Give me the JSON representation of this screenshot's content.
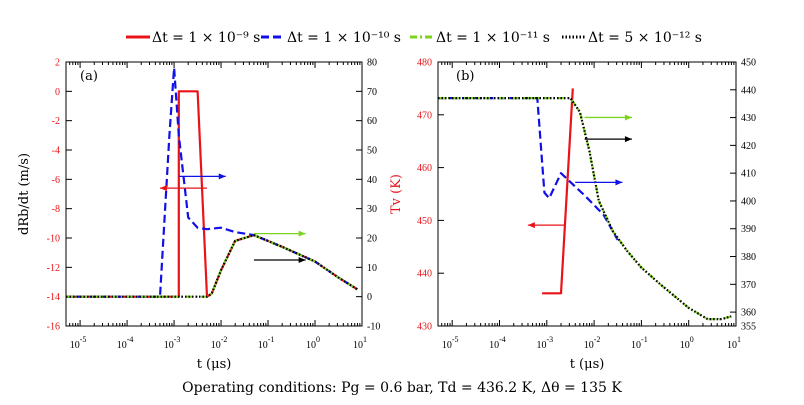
{
  "legend": [
    {
      "label": "Δt = 1 × 10⁻⁹ s",
      "color": "#e8141a",
      "dash": "solid"
    },
    {
      "label": "Δt = 1 × 10⁻¹⁰ s",
      "color": "#1010e8",
      "dash": "dash"
    },
    {
      "label": "Δt = 1 × 10⁻¹¹ s",
      "color": "#7ed321",
      "dash": "dashdot"
    },
    {
      "label": "Δt = 5 × 10⁻¹² s",
      "color": "#000000",
      "dash": "dot"
    }
  ],
  "caption": "Operating conditions: Pg = 0.6 bar, Td = 436.2 K, Δθ = 135 K",
  "chart_data": [
    {
      "type": "line",
      "panel_label": "(a)",
      "xlabel": "t (μs)",
      "xscale": "log",
      "xlim_exp": [
        -5.3,
        1
      ],
      "x_tick_labels": [
        "10 -5",
        "10 -4",
        "10 -3",
        "10 -2",
        "10 -1",
        "10 0",
        "10 1"
      ],
      "ylabel": "dR_b/dt (m/s)",
      "ylim": [
        -16,
        2
      ],
      "y_ticks": [
        -16,
        -14,
        -12,
        -10,
        -8,
        -6,
        -4,
        -2,
        0,
        2
      ],
      "y_tick_labels": [
        "-16",
        "-14",
        "-12",
        "-10",
        "-8",
        "-6",
        "-4",
        "-2",
        "0",
        "2"
      ],
      "y2label": "",
      "y2lim": [
        -10,
        80
      ],
      "y2_ticks": [
        -10,
        0,
        10,
        20,
        30,
        40,
        50,
        60,
        70,
        80
      ],
      "y2_tick_labels": [
        "-10",
        "0",
        "10",
        "20",
        "30",
        "40",
        "50",
        "60",
        "70",
        "80"
      ],
      "series": [
        {
          "name": "Δt = 1 × 10⁻⁹ s",
          "color": "#e8141a",
          "dash": "solid",
          "axis": "left",
          "log10_x": [
            -5.3,
            -2.9,
            -2.9,
            -2.5,
            -2.3,
            -2.3,
            -2.2,
            -2.0,
            -1.7,
            -1.3,
            -0.7,
            0,
            0.5,
            0.9
          ],
          "y": [
            -14,
            -14,
            0,
            0,
            -14,
            -14,
            -13.8,
            -12.2,
            -10.2,
            -9.8,
            -10.6,
            -11.6,
            -12.7,
            -13.5
          ]
        },
        {
          "name": "Δt = 1 × 10⁻¹⁰ s",
          "color": "#1010e8",
          "dash": "dash",
          "axis": "left",
          "log10_x": [
            -5.3,
            -3.3,
            -3.1,
            -3.0,
            -2.9,
            -2.7,
            -2.5,
            -2.3,
            -2.0,
            -1.7,
            -1.3,
            -0.7,
            0,
            0.5,
            0.9
          ],
          "y": [
            -14,
            -14,
            -3,
            1.6,
            -3,
            -8.6,
            -9.3,
            -9.4,
            -9.3,
            -9.6,
            -9.8,
            -10.6,
            -11.6,
            -12.7,
            -13.5
          ]
        },
        {
          "name": "Δt = 1 × 10⁻¹¹ s",
          "color": "#7ed321",
          "dash": "dashdot",
          "axis": "left",
          "log10_x": [
            -5.3,
            -2.3,
            -2.2,
            -2.0,
            -1.7,
            -1.3,
            -0.7,
            0,
            0.5,
            0.9
          ],
          "y": [
            -14,
            -14,
            -13.8,
            -12.2,
            -10.2,
            -9.8,
            -10.6,
            -11.6,
            -12.7,
            -13.5
          ]
        },
        {
          "name": "Δt = 5 × 10⁻¹² s",
          "color": "#000000",
          "dash": "dot",
          "axis": "left",
          "log10_x": [
            -5.3,
            -2.3,
            -2.2,
            -2.0,
            -1.7,
            -1.3,
            -0.7,
            0,
            0.5,
            0.9
          ],
          "y": [
            -14,
            -14,
            -13.8,
            -12.2,
            -10.2,
            -9.8,
            -10.6,
            -11.6,
            -12.7,
            -13.5
          ]
        }
      ],
      "arrows": [
        {
          "color": "#e8141a",
          "direction": "left",
          "log10_x": [
            -2.3,
            -3.3
          ],
          "y": -6.6
        },
        {
          "color": "#1010e8",
          "direction": "right",
          "log10_x": [
            -2.9,
            -1.9
          ],
          "y": -5.8
        },
        {
          "color": "#7ed321",
          "direction": "right",
          "log10_x": [
            -1.3,
            -0.2
          ],
          "y": -9.7
        },
        {
          "color": "#000000",
          "direction": "right",
          "log10_x": [
            -1.3,
            -0.2
          ],
          "y": -11.5
        }
      ]
    },
    {
      "type": "line",
      "panel_label": "(b)",
      "xlabel": "t (μs)",
      "xscale": "log",
      "xlim_exp": [
        -5.3,
        1
      ],
      "x_tick_labels": [
        "10 -5",
        "10 -4",
        "10 -3",
        "10 -2",
        "10 -1",
        "10 0",
        "10 1"
      ],
      "ylabel": "T_v (K)",
      "ylim": [
        430,
        480
      ],
      "y_ticks": [
        430,
        440,
        450,
        460,
        470,
        480
      ],
      "y_tick_labels": [
        "430",
        "440",
        "450",
        "460",
        "470",
        "480"
      ],
      "y2label": "",
      "y2lim": [
        355,
        450
      ],
      "y2_ticks": [
        355,
        360,
        370,
        380,
        390,
        400,
        410,
        420,
        430,
        440,
        450
      ],
      "y2_tick_labels": [
        "355",
        "360",
        "370",
        "380",
        "390",
        "400",
        "410",
        "420",
        "430",
        "440",
        "450"
      ],
      "series": [
        {
          "name": "Δt = 1 × 10⁻⁹ s",
          "color": "#e8141a",
          "dash": "solid",
          "axis": "left",
          "log10_x": [
            -3.1,
            -2.7,
            -2.45
          ],
          "y": [
            436.2,
            436.2,
            475
          ]
        },
        {
          "name": "Δt = 1 × 10⁻¹⁰ s",
          "color": "#1010e8",
          "dash": "dash",
          "axis": "right",
          "log10_x": [
            -5.3,
            -3.2,
            -3.05,
            -2.95,
            -2.7,
            -2.45,
            -2.2,
            -1.8,
            -1.5
          ],
          "y": [
            437,
            437,
            403,
            401,
            410,
            406,
            402,
            395,
            386
          ]
        },
        {
          "name": "Δt = 1 × 10⁻¹¹ s",
          "color": "#7ed321",
          "dash": "dashdot",
          "axis": "right",
          "log10_x": [
            -5.3,
            -2.5,
            -2.3,
            -2.1,
            -1.9,
            -1.6,
            -1.3,
            -1.0,
            -0.6,
            0,
            0.4,
            0.7,
            0.9
          ],
          "y": [
            437,
            437,
            432,
            418,
            400,
            389,
            382,
            376,
            370,
            361.5,
            357.5,
            357.5,
            358.5
          ]
        },
        {
          "name": "Δt = 5 × 10⁻¹² s",
          "color": "#000000",
          "dash": "dot",
          "axis": "right",
          "log10_x": [
            -5.3,
            -2.5,
            -2.3,
            -2.1,
            -1.9,
            -1.6,
            -1.3,
            -1.0,
            -0.6,
            0,
            0.4,
            0.7,
            0.9
          ],
          "y": [
            437,
            437,
            432,
            418,
            400,
            389,
            382,
            376,
            370,
            361.5,
            357.5,
            357.5,
            358.5
          ]
        }
      ],
      "arrows": [
        {
          "color": "#e8141a",
          "direction": "left",
          "log10_x": [
            -2.6,
            -3.4
          ],
          "y": 449.1
        },
        {
          "color": "#1010e8",
          "direction": "right",
          "log10_x": [
            -2.4,
            -1.4
          ],
          "y": 457.2
        },
        {
          "color": "#7ed321",
          "direction": "right",
          "log10_x": [
            -2.2,
            -1.2
          ],
          "y": 469.5
        },
        {
          "color": "#000000",
          "direction": "right",
          "log10_x": [
            -2.2,
            -1.2
          ],
          "y": 465.4
        }
      ]
    }
  ]
}
